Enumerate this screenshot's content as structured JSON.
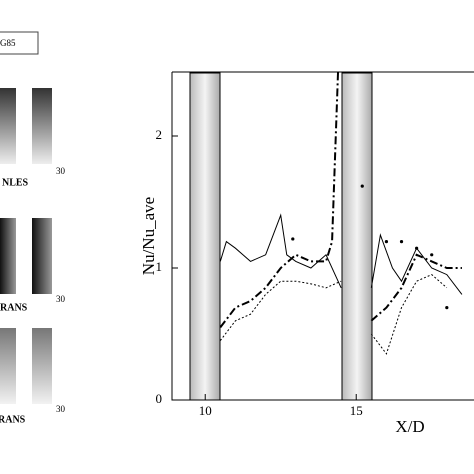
{
  "legend_fragment": "G85",
  "side_panels": [
    {
      "label": "NLES",
      "tick": "30"
    },
    {
      "label": "RANS",
      "tick": "30"
    },
    {
      "label": "RANS",
      "tick": "30"
    }
  ],
  "chart_data": {
    "type": "line",
    "xlabel": "X/D",
    "ylabel": "Nu/Nu_ave",
    "xlim": [
      8.9,
      18.9
    ],
    "ylim": [
      0,
      2.5
    ],
    "xticks": [
      10,
      15
    ],
    "yticks": [
      0,
      1,
      2
    ],
    "grid": false,
    "series": [
      {
        "color": "#000",
        "style": "solid",
        "x": [
          10.5,
          10.7,
          11,
          11.5,
          12,
          12.5,
          12.7,
          13,
          13.5,
          14,
          14.5,
          null,
          15.5,
          15.8,
          16.2,
          16.5,
          17,
          17.5,
          18,
          18.5
        ],
        "values": [
          1.05,
          1.2,
          1.15,
          1.05,
          1.1,
          1.4,
          1.1,
          1.05,
          1.0,
          1.1,
          0.85,
          null,
          0.85,
          1.25,
          1.0,
          0.9,
          1.15,
          1.0,
          0.95,
          0.8
        ]
      },
      {
        "color": "#000",
        "style": "dashdot",
        "x": [
          10.5,
          11,
          11.5,
          12,
          12.5,
          13,
          13.5,
          14,
          14.2,
          14.4,
          null,
          15.5,
          16,
          16.5,
          17,
          17.5,
          18,
          18.5
        ],
        "values": [
          0.55,
          0.7,
          0.75,
          0.85,
          1.0,
          1.1,
          1.05,
          1.05,
          1.2,
          2.5,
          null,
          0.6,
          0.7,
          0.85,
          1.1,
          1.05,
          1.0,
          1.0
        ]
      },
      {
        "color": "#000",
        "style": "dotted",
        "x": [
          10.5,
          11,
          11.5,
          12,
          12.5,
          13,
          13.5,
          14,
          14.5,
          null,
          15.5,
          16,
          16.5,
          17,
          17.5,
          18
        ],
        "values": [
          0.45,
          0.6,
          0.65,
          0.8,
          0.9,
          0.9,
          0.88,
          0.85,
          0.9,
          null,
          0.5,
          0.35,
          0.7,
          0.9,
          0.95,
          0.85
        ]
      },
      {
        "color": "#000",
        "style": "markers",
        "x": [
          12.9,
          15.2,
          16,
          16.5,
          17,
          17.5,
          18
        ],
        "values": [
          1.22,
          1.62,
          1.2,
          1.2,
          1.15,
          1.1,
          0.7
        ]
      }
    ]
  }
}
